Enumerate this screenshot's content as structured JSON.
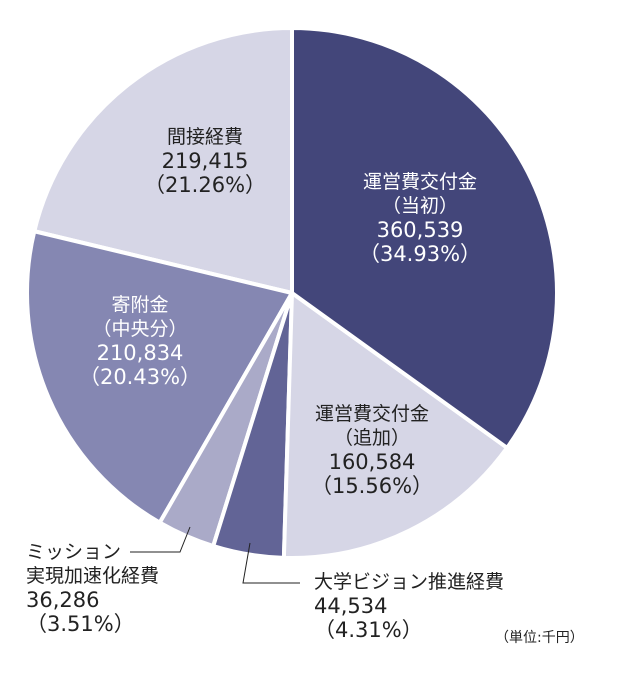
{
  "chart_data": {
    "type": "pie",
    "title": "",
    "unit_note": "（単位:千円）",
    "start": "12 o'clock, clockwise",
    "slices": [
      {
        "name": "運営費交付金",
        "sub": "（当初）",
        "value": 360539,
        "value_label": "360,539",
        "pct_label": "（34.93%）",
        "percent": 34.93,
        "color": "#43467a"
      },
      {
        "name": "運営費交付金",
        "sub": "（追加）",
        "value": 160584,
        "value_label": "160,584",
        "pct_label": "（15.56%）",
        "percent": 15.56,
        "color": "#d6d6e6"
      },
      {
        "name": "大学ビジョン推進経費",
        "sub": "",
        "value": 44534,
        "value_label": "44,534",
        "pct_label": "（4.31%）",
        "percent": 4.31,
        "color": "#626496"
      },
      {
        "name": "ミッション",
        "sub": "実現加速化経費",
        "value": 36286,
        "value_label": "36,286",
        "pct_label": "（3.51%）",
        "percent": 3.51,
        "color": "#aaaac8"
      },
      {
        "name": "寄附金",
        "sub": "（中央分）",
        "value": 210834,
        "value_label": "210,834",
        "pct_label": "（20.43%）",
        "percent": 20.43,
        "color": "#8587b2"
      },
      {
        "name": "間接経費",
        "sub": "",
        "value": 219415,
        "value_label": "219,415",
        "pct_label": "（21.26%）",
        "percent": 21.26,
        "color": "#d6d6e6"
      }
    ]
  }
}
